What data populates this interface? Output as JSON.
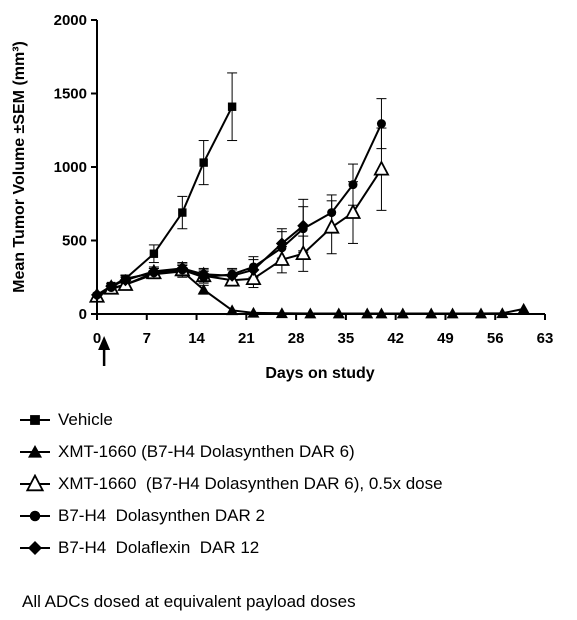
{
  "chart_data": {
    "type": "line",
    "xlabel": "Days on study",
    "ylabel": "Mean Tumor Volume ±SEM (mm³)",
    "xlim": [
      0,
      63
    ],
    "ylim": [
      0,
      2000
    ],
    "x_ticks": [
      "0",
      "7",
      "14",
      "21",
      "28",
      "35",
      "42",
      "49",
      "56",
      "63"
    ],
    "y_ticks": [
      "0",
      "500",
      "1000",
      "1500",
      "2000"
    ],
    "dosing_marker_day": 1,
    "series": [
      {
        "name": "Vehicle",
        "marker": "square",
        "points": [
          [
            0,
            120
          ],
          [
            2,
            190
          ],
          [
            4,
            240
          ],
          [
            8,
            410
          ],
          [
            12,
            690
          ],
          [
            15,
            1030
          ],
          [
            19,
            1410
          ]
        ],
        "error": [
          10,
          20,
          25,
          60,
          110,
          150,
          230
        ]
      },
      {
        "name": "XMT-1660 (B7-H4 Dolasynthen DAR 6)",
        "marker": "triangle-filled",
        "points": [
          [
            0,
            120
          ],
          [
            2,
            170
          ],
          [
            4,
            200
          ],
          [
            8,
            270
          ],
          [
            12,
            290
          ],
          [
            15,
            165
          ],
          [
            19,
            25
          ],
          [
            22,
            8
          ],
          [
            26,
            5
          ],
          [
            30,
            3
          ],
          [
            34,
            3
          ],
          [
            38,
            3
          ],
          [
            40,
            3
          ],
          [
            43,
            3
          ],
          [
            47,
            3
          ],
          [
            50,
            3
          ],
          [
            54,
            3
          ],
          [
            57,
            5
          ],
          [
            60,
            35
          ]
        ],
        "error": [
          10,
          15,
          20,
          25,
          40,
          30,
          10,
          3,
          2,
          2,
          2,
          2,
          2,
          2,
          2,
          2,
          2,
          3,
          10
        ]
      },
      {
        "name": "XMT-1660  (B7-H4 Dolasynthen DAR 6), 0.5x dose",
        "marker": "triangle-open",
        "points": [
          [
            0,
            120
          ],
          [
            2,
            175
          ],
          [
            4,
            200
          ],
          [
            8,
            280
          ],
          [
            12,
            300
          ],
          [
            15,
            260
          ],
          [
            19,
            230
          ],
          [
            22,
            240
          ],
          [
            26,
            370
          ],
          [
            29,
            410
          ],
          [
            33,
            590
          ],
          [
            36,
            690
          ],
          [
            40,
            985
          ]
        ],
        "error": [
          10,
          15,
          20,
          30,
          40,
          40,
          40,
          60,
          90,
          120,
          180,
          210,
          280
        ]
      },
      {
        "name": "B7-H4  Dolasynthen DAR 2",
        "marker": "circle",
        "points": [
          [
            0,
            130
          ],
          [
            2,
            180
          ],
          [
            4,
            240
          ],
          [
            8,
            280
          ],
          [
            12,
            300
          ],
          [
            15,
            250
          ],
          [
            19,
            270
          ],
          [
            22,
            320
          ],
          [
            26,
            450
          ],
          [
            29,
            580
          ],
          [
            33,
            690
          ],
          [
            36,
            880
          ],
          [
            40,
            1295
          ]
        ],
        "error": [
          10,
          15,
          20,
          30,
          40,
          40,
          40,
          70,
          110,
          150,
          120,
          140,
          170
        ]
      },
      {
        "name": "B7-H4  Dolaflexin  DAR 12",
        "marker": "diamond",
        "points": [
          [
            0,
            130
          ],
          [
            2,
            190
          ],
          [
            4,
            230
          ],
          [
            8,
            290
          ],
          [
            12,
            310
          ],
          [
            15,
            270
          ],
          [
            19,
            260
          ],
          [
            22,
            300
          ],
          [
            26,
            480
          ],
          [
            29,
            600
          ]
        ],
        "error": [
          10,
          15,
          20,
          30,
          40,
          40,
          40,
          70,
          100,
          180
        ]
      }
    ]
  },
  "footnote": "All ADCs dosed at equivalent payload doses"
}
